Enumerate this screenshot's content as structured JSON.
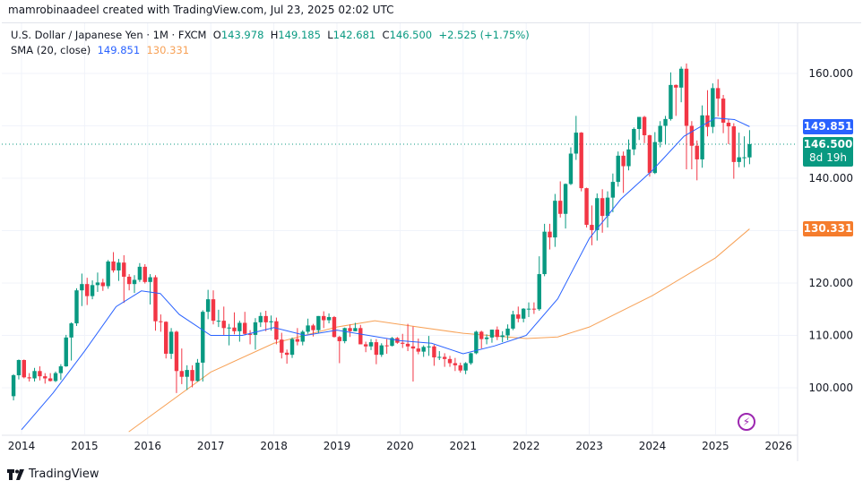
{
  "credit": "mamrobinaadeel created with TradingView.com, Jul 23, 2025 02:02 UTC",
  "legend": {
    "symbol": "U.S. Dollar / Japanese Yen · 1M · FXCM",
    "o_label": "O",
    "o": "143.978",
    "h_label": "H",
    "h": "149.185",
    "l_label": "L",
    "l": "142.681",
    "c_label": "C",
    "c": "146.500",
    "change": "+2.525 (+1.75%)",
    "sma_label": "SMA (20, close)",
    "sma_value": "149.851",
    "sma2_value": "130.331"
  },
  "price_labels": {
    "sma": "149.851",
    "last": "146.500",
    "countdown": "8d 19h",
    "sma2": "130.331"
  },
  "footer": {
    "brand": "TradingView"
  },
  "colors": {
    "up": "#089981",
    "down": "#f23645",
    "sma": "#2962ff",
    "sma2": "#f7a156",
    "flash": "#9c27b0"
  },
  "chart_data": {
    "type": "candlestick",
    "interval": "1M",
    "start_month": "2013-11",
    "ylim": [
      90,
      165
    ],
    "y_ticks": [
      "100.000",
      "110.000",
      "120.000",
      "140.000",
      "160.000"
    ],
    "x_ticks": [
      "2014",
      "2015",
      "2016",
      "2017",
      "2018",
      "2019",
      "2020",
      "2021",
      "2022",
      "2023",
      "2024",
      "2025",
      "2026"
    ],
    "grid": true,
    "ohlc": [
      [
        98.4,
        102.6,
        97.6,
        102.4
      ],
      [
        102.4,
        105.4,
        101.6,
        105.3
      ],
      [
        105.3,
        105.4,
        101.8,
        102.0
      ],
      [
        102.0,
        102.8,
        101.2,
        101.8
      ],
      [
        101.8,
        103.8,
        101.2,
        103.2
      ],
      [
        103.2,
        104.1,
        101.4,
        102.2
      ],
      [
        102.2,
        102.8,
        100.8,
        101.8
      ],
      [
        101.8,
        102.8,
        101.2,
        101.3
      ],
      [
        101.3,
        103.1,
        101.1,
        102.8
      ],
      [
        102.8,
        104.5,
        101.5,
        104.1
      ],
      [
        104.1,
        110.1,
        104.0,
        109.6
      ],
      [
        109.6,
        112.5,
        105.2,
        112.3
      ],
      [
        112.3,
        119.0,
        111.8,
        118.6
      ],
      [
        118.6,
        121.8,
        115.6,
        119.8
      ],
      [
        119.8,
        121.0,
        115.8,
        117.5
      ],
      [
        117.5,
        120.5,
        116.9,
        119.6
      ],
      [
        119.6,
        122.0,
        118.3,
        120.1
      ],
      [
        120.1,
        120.8,
        118.5,
        119.4
      ],
      [
        119.4,
        124.4,
        118.9,
        124.1
      ],
      [
        124.1,
        125.9,
        122.0,
        122.4
      ],
      [
        122.4,
        124.6,
        120.4,
        123.9
      ],
      [
        123.9,
        125.3,
        116.2,
        121.2
      ],
      [
        121.2,
        121.7,
        118.6,
        119.8
      ],
      [
        119.8,
        121.5,
        118.1,
        120.6
      ],
      [
        120.6,
        123.8,
        120.2,
        123.1
      ],
      [
        123.1,
        123.6,
        119.9,
        120.2
      ],
      [
        120.2,
        121.7,
        115.9,
        121.1
      ],
      [
        121.1,
        121.5,
        110.9,
        112.7
      ],
      [
        112.7,
        114.0,
        110.7,
        112.6
      ],
      [
        112.6,
        112.7,
        105.6,
        106.5
      ],
      [
        106.5,
        111.4,
        105.5,
        110.7
      ],
      [
        110.7,
        110.9,
        99.0,
        103.2
      ],
      [
        103.2,
        107.5,
        100.7,
        102.1
      ],
      [
        102.1,
        104.3,
        99.6,
        103.4
      ],
      [
        103.4,
        104.3,
        100.1,
        101.3
      ],
      [
        101.3,
        105.5,
        101.2,
        104.8
      ],
      [
        104.8,
        114.8,
        101.2,
        114.5
      ],
      [
        114.5,
        118.7,
        113.1,
        116.9
      ],
      [
        116.9,
        118.6,
        112.1,
        112.8
      ],
      [
        112.8,
        114.9,
        111.6,
        112.8
      ],
      [
        112.8,
        115.5,
        110.1,
        111.4
      ],
      [
        111.4,
        112.2,
        108.1,
        111.5
      ],
      [
        111.5,
        114.4,
        110.2,
        110.8
      ],
      [
        110.8,
        112.8,
        108.8,
        112.4
      ],
      [
        112.4,
        114.5,
        110.0,
        110.3
      ],
      [
        110.3,
        111.0,
        108.3,
        110.1
      ],
      [
        110.1,
        113.3,
        107.3,
        112.5
      ],
      [
        112.5,
        114.4,
        111.6,
        113.7
      ],
      [
        113.7,
        114.7,
        110.8,
        112.5
      ],
      [
        112.5,
        113.8,
        110.9,
        112.7
      ],
      [
        112.7,
        113.4,
        108.3,
        109.2
      ],
      [
        109.2,
        110.5,
        105.6,
        106.7
      ],
      [
        106.7,
        107.3,
        104.6,
        106.3
      ],
      [
        106.3,
        109.6,
        105.7,
        109.3
      ],
      [
        109.3,
        111.4,
        108.1,
        108.8
      ],
      [
        108.8,
        111.0,
        108.1,
        110.7
      ],
      [
        110.7,
        113.2,
        110.3,
        111.9
      ],
      [
        111.9,
        112.2,
        109.8,
        111.0
      ],
      [
        111.0,
        113.7,
        110.4,
        113.7
      ],
      [
        113.7,
        114.6,
        111.4,
        112.9
      ],
      [
        112.9,
        114.2,
        112.3,
        113.5
      ],
      [
        113.5,
        113.7,
        109.6,
        109.7
      ],
      [
        109.7,
        109.9,
        104.7,
        108.9
      ],
      [
        108.9,
        111.5,
        108.5,
        111.4
      ],
      [
        111.4,
        112.1,
        109.7,
        110.8
      ],
      [
        110.8,
        112.4,
        110.8,
        111.4
      ],
      [
        111.4,
        112.0,
        108.3,
        108.3
      ],
      [
        108.3,
        108.8,
        106.8,
        107.9
      ],
      [
        107.9,
        109.3,
        107.2,
        108.7
      ],
      [
        108.7,
        109.3,
        104.5,
        106.3
      ],
      [
        106.3,
        108.5,
        105.9,
        108.1
      ],
      [
        108.1,
        109.3,
        106.5,
        108.0
      ],
      [
        108.0,
        109.7,
        107.9,
        109.5
      ],
      [
        109.5,
        109.7,
        108.4,
        108.6
      ],
      [
        108.6,
        110.3,
        107.6,
        108.4
      ],
      [
        108.4,
        112.2,
        107.0,
        107.9
      ],
      [
        107.9,
        111.7,
        101.2,
        107.5
      ],
      [
        107.5,
        109.4,
        106.4,
        106.9
      ],
      [
        106.9,
        108.1,
        105.9,
        107.8
      ],
      [
        107.8,
        109.9,
        106.1,
        107.9
      ],
      [
        107.9,
        108.2,
        104.2,
        105.8
      ],
      [
        105.8,
        107.0,
        105.3,
        105.9
      ],
      [
        105.9,
        106.6,
        104.0,
        105.5
      ],
      [
        105.5,
        106.1,
        104.0,
        104.7
      ],
      [
        104.7,
        105.7,
        103.2,
        104.3
      ],
      [
        104.3,
        104.8,
        102.9,
        103.3
      ],
      [
        103.3,
        104.9,
        102.6,
        104.7
      ],
      [
        104.7,
        106.7,
        104.4,
        106.6
      ],
      [
        106.6,
        110.9,
        106.4,
        110.7
      ],
      [
        110.7,
        110.9,
        107.5,
        109.3
      ],
      [
        109.3,
        110.2,
        108.3,
        109.6
      ],
      [
        109.6,
        111.1,
        108.6,
        111.1
      ],
      [
        111.1,
        111.7,
        109.1,
        109.7
      ],
      [
        109.7,
        110.8,
        108.7,
        110.0
      ],
      [
        110.0,
        112.1,
        109.1,
        111.3
      ],
      [
        111.3,
        114.7,
        111.0,
        114.0
      ],
      [
        114.0,
        115.5,
        112.5,
        113.2
      ],
      [
        113.2,
        115.2,
        112.5,
        115.1
      ],
      [
        115.1,
        116.3,
        113.5,
        115.1
      ],
      [
        115.1,
        116.3,
        114.1,
        115.0
      ],
      [
        115.0,
        125.1,
        114.7,
        121.7
      ],
      [
        121.7,
        131.3,
        121.3,
        129.8
      ],
      [
        129.8,
        131.3,
        126.4,
        128.7
      ],
      [
        128.7,
        137.0,
        126.9,
        135.7
      ],
      [
        135.7,
        139.4,
        132.5,
        133.2
      ],
      [
        133.2,
        139.0,
        130.4,
        138.9
      ],
      [
        138.9,
        145.9,
        138.7,
        144.7
      ],
      [
        144.7,
        151.9,
        143.5,
        148.7
      ],
      [
        148.7,
        148.8,
        137.5,
        138.1
      ],
      [
        138.1,
        138.2,
        130.6,
        131.1
      ],
      [
        131.1,
        134.8,
        127.2,
        130.1
      ],
      [
        130.1,
        137.1,
        128.1,
        136.2
      ],
      [
        136.2,
        137.9,
        129.6,
        132.8
      ],
      [
        132.8,
        137.5,
        130.6,
        136.3
      ],
      [
        136.3,
        140.9,
        133.5,
        139.3
      ],
      [
        139.3,
        145.1,
        138.4,
        144.3
      ],
      [
        144.3,
        145.1,
        137.2,
        142.3
      ],
      [
        142.3,
        147.4,
        141.5,
        145.5
      ],
      [
        145.5,
        149.7,
        144.4,
        149.4
      ],
      [
        149.4,
        151.7,
        147.3,
        151.7
      ],
      [
        151.7,
        151.9,
        146.7,
        148.2
      ],
      [
        148.2,
        148.3,
        140.3,
        141.0
      ],
      [
        141.0,
        148.8,
        140.8,
        146.9
      ],
      [
        146.9,
        150.9,
        145.9,
        150.0
      ],
      [
        150.0,
        151.9,
        146.5,
        151.3
      ],
      [
        151.3,
        160.2,
        151.0,
        157.8
      ],
      [
        157.8,
        157.9,
        151.9,
        157.3
      ],
      [
        157.3,
        161.3,
        154.5,
        160.9
      ],
      [
        160.9,
        161.9,
        141.7,
        150.0
      ],
      [
        150.0,
        150.9,
        141.7,
        146.2
      ],
      [
        146.2,
        147.2,
        139.6,
        143.6
      ],
      [
        143.6,
        153.9,
        142.0,
        152.0
      ],
      [
        152.0,
        156.8,
        148.0,
        149.8
      ],
      [
        149.8,
        158.1,
        148.6,
        157.2
      ],
      [
        157.2,
        158.9,
        151.8,
        155.2
      ],
      [
        155.2,
        155.9,
        148.6,
        150.6
      ],
      [
        150.6,
        151.3,
        146.5,
        149.9
      ],
      [
        149.9,
        150.5,
        139.9,
        143.1
      ],
      [
        143.1,
        148.7,
        142.1,
        144.0
      ],
      [
        144.0,
        148.0,
        142.1,
        144.0
      ],
      [
        143.978,
        149.185,
        142.681,
        146.5
      ]
    ],
    "sma20": [
      [
        2014.0,
        92
      ],
      [
        2014.5,
        99
      ],
      [
        2015.0,
        107
      ],
      [
        2015.5,
        115.5
      ],
      [
        2015.9,
        118.5
      ],
      [
        2016.2,
        118
      ],
      [
        2016.5,
        114
      ],
      [
        2017.0,
        110
      ],
      [
        2017.5,
        110
      ],
      [
        2018.0,
        111.5
      ],
      [
        2018.5,
        110
      ],
      [
        2019.0,
        111
      ],
      [
        2019.5,
        110
      ],
      [
        2020.0,
        109
      ],
      [
        2020.5,
        108.5
      ],
      [
        2021.0,
        106.5
      ],
      [
        2021.5,
        108
      ],
      [
        2022.0,
        110
      ],
      [
        2022.5,
        117
      ],
      [
        2023.0,
        128.5
      ],
      [
        2023.5,
        136
      ],
      [
        2024.0,
        141.5
      ],
      [
        2024.5,
        148
      ],
      [
        2025.0,
        151.5
      ],
      [
        2025.3,
        151.2
      ],
      [
        2025.54,
        149.851
      ]
    ],
    "sma2": [
      [
        2015.7,
        91.6
      ],
      [
        2017.0,
        103
      ],
      [
        2018.0,
        108.5
      ],
      [
        2019.0,
        111.6
      ],
      [
        2019.6,
        112.8
      ],
      [
        2020.0,
        112.1
      ],
      [
        2021.0,
        110.4
      ],
      [
        2022.0,
        109.4
      ],
      [
        2022.5,
        109.7
      ],
      [
        2023.0,
        111.6
      ],
      [
        2024.0,
        117.6
      ],
      [
        2025.0,
        124.8
      ],
      [
        2025.54,
        130.331
      ]
    ],
    "last_price": 146.5
  }
}
